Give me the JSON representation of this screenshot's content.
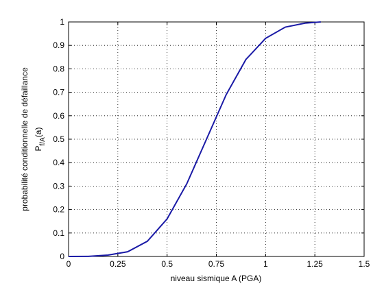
{
  "chart_data": {
    "type": "line",
    "xlabel": "niveau sismique A (PGA)",
    "ylabel": "probabilité conditionnelle de défaillance",
    "ylabel2": {
      "symbol": "P",
      "subscript": "f/A",
      "suffix": "(a)"
    },
    "x": [
      0,
      0.1,
      0.2,
      0.3,
      0.4,
      0.5,
      0.6,
      0.7,
      0.8,
      0.9,
      1.0,
      1.1,
      1.2,
      1.28
    ],
    "series": [
      {
        "color": "#1a1aa6",
        "values": [
          0,
          0.0005,
          0.006,
          0.02,
          0.065,
          0.16,
          0.31,
          0.5,
          0.69,
          0.84,
          0.93,
          0.978,
          0.995,
          1.0
        ]
      }
    ],
    "xlim": [
      0,
      1.5
    ],
    "ylim": [
      0,
      1
    ],
    "xticks": [
      0,
      0.25,
      0.5,
      0.75,
      1,
      1.25,
      1.5
    ],
    "yticks": [
      0,
      0.1,
      0.2,
      0.3,
      0.4,
      0.5,
      0.6,
      0.7,
      0.8,
      0.9,
      1
    ],
    "grid": true
  }
}
